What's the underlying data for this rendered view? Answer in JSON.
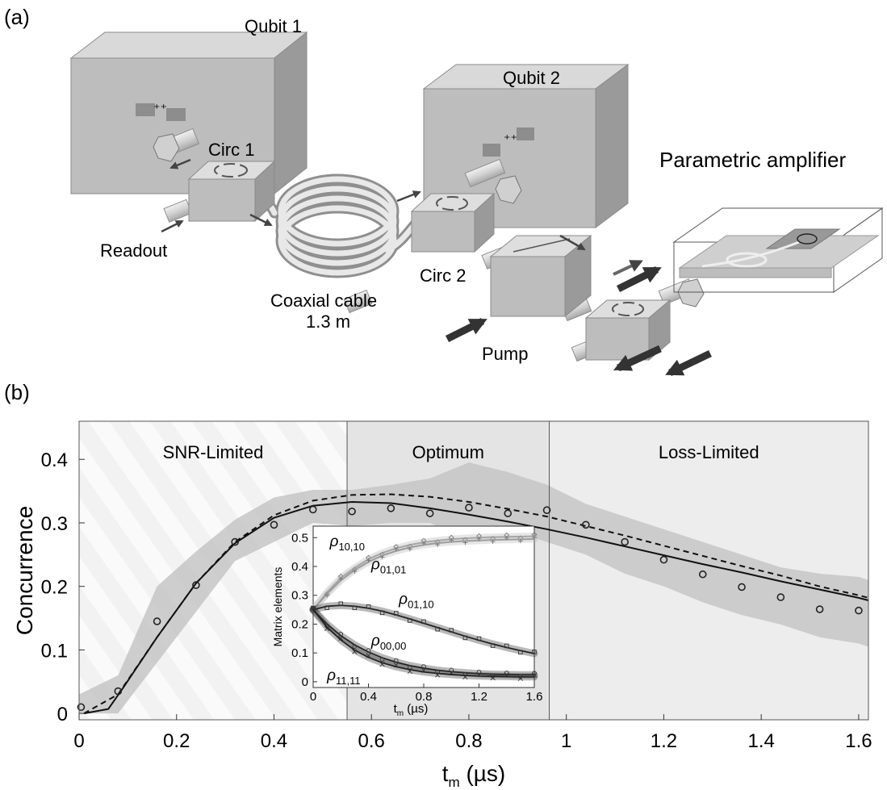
{
  "panel_a": {
    "label": "(a)",
    "labels": {
      "qubit1": "Qubit 1",
      "qubit2": "Qubit 2",
      "circ1": "Circ 1",
      "circ2": "Circ 2",
      "readout": "Readout",
      "cable_line1": "Coaxial cable",
      "cable_line2": "1.3 m",
      "pump": "Pump",
      "paramp": "Parametric amplifier"
    },
    "colors": {
      "box": "#bdbdbd",
      "arrow": "#444444"
    }
  },
  "panel_b": {
    "label": "(b)",
    "regions": [
      {
        "label": "SNR-Limited",
        "from": 0,
        "to": 0.55,
        "shade": "#f1f1f1"
      },
      {
        "label": "Optimum",
        "from": 0.55,
        "to": 0.965,
        "shade": "#e4e4e4"
      },
      {
        "label": "Loss-Limited",
        "from": 0.965,
        "to": 1.62,
        "shade": "#ededed"
      }
    ]
  },
  "chart_data": [
    {
      "type": "line",
      "xlabel": "t_m (µs)",
      "xlabel_main": "t",
      "xlabel_sub": "m",
      "xlabel_unit": " (µs)",
      "ylabel": "Concurrence",
      "xlim": [
        0,
        1.62
      ],
      "ylim": [
        -0.01,
        0.46
      ],
      "xticks": [
        0,
        0.2,
        0.4,
        0.6,
        0.8,
        1,
        1.2,
        1.4,
        1.6
      ],
      "xtick_labels": [
        "0",
        "0.2",
        "0.4",
        "0.6",
        "0.8",
        "1",
        "1.2",
        "1.4",
        "1.6"
      ],
      "yticks": [
        0,
        0.1,
        0.2,
        0.3,
        0.4
      ],
      "ytick_labels": [
        "0",
        "0.1",
        "0.2",
        "0.3",
        "0.4"
      ],
      "series": [
        {
          "style": "solid",
          "x": [
            0.01,
            0.06,
            0.09,
            0.16,
            0.24,
            0.32,
            0.4,
            0.48,
            0.56,
            0.64,
            0.72,
            0.8,
            0.88,
            0.96,
            1.04,
            1.12,
            1.2,
            1.28,
            1.36,
            1.44,
            1.52,
            1.6,
            1.62
          ],
          "y": [
            0.0,
            0.007,
            0.04,
            0.12,
            0.205,
            0.268,
            0.308,
            0.327,
            0.333,
            0.331,
            0.323,
            0.313,
            0.302,
            0.29,
            0.277,
            0.263,
            0.249,
            0.235,
            0.222,
            0.208,
            0.195,
            0.182,
            0.178
          ]
        },
        {
          "style": "dashed",
          "x": [
            0.01,
            0.08,
            0.16,
            0.24,
            0.32,
            0.4,
            0.48,
            0.56,
            0.64,
            0.72,
            0.8,
            0.88,
            0.96,
            1.04,
            1.12,
            1.2,
            1.28,
            1.36,
            1.44,
            1.52,
            1.6,
            1.62
          ],
          "y": [
            0.0,
            0.03,
            0.12,
            0.205,
            0.27,
            0.312,
            0.335,
            0.344,
            0.345,
            0.341,
            0.333,
            0.322,
            0.31,
            0.295,
            0.28,
            0.264,
            0.248,
            0.232,
            0.217,
            0.2,
            0.186,
            0.182
          ]
        },
        {
          "style": "markers",
          "x": [
            0.004,
            0.08,
            0.16,
            0.24,
            0.32,
            0.4,
            0.48,
            0.56,
            0.64,
            0.72,
            0.8,
            0.88,
            0.96,
            1.04,
            1.12,
            1.2,
            1.28,
            1.36,
            1.44,
            1.52,
            1.6
          ],
          "y": [
            0.01,
            0.035,
            0.145,
            0.202,
            0.27,
            0.297,
            0.321,
            0.318,
            0.323,
            0.315,
            0.324,
            0.315,
            0.32,
            0.297,
            0.27,
            0.242,
            0.219,
            0.199,
            0.183,
            0.164,
            0.162
          ]
        }
      ],
      "band_x": [
        0,
        0.08,
        0.16,
        0.24,
        0.32,
        0.4,
        0.48,
        0.56,
        0.64,
        0.72,
        0.8,
        0.88,
        0.96,
        1.04,
        1.12,
        1.2,
        1.28,
        1.36,
        1.44,
        1.52,
        1.6,
        1.62
      ],
      "band_upper": [
        0.03,
        0.06,
        0.2,
        0.255,
        0.305,
        0.34,
        0.352,
        0.352,
        0.36,
        0.37,
        0.395,
        0.38,
        0.36,
        0.33,
        0.31,
        0.29,
        0.27,
        0.25,
        0.23,
        0.22,
        0.215,
        0.21
      ],
      "band_lower": [
        0.0,
        0.0,
        0.08,
        0.16,
        0.24,
        0.27,
        0.3,
        0.295,
        0.3,
        0.3,
        0.27,
        0.29,
        0.27,
        0.25,
        0.22,
        0.2,
        0.175,
        0.155,
        0.14,
        0.12,
        0.11,
        0.105
      ],
      "dividers": [
        0.55,
        0.965
      ]
    },
    {
      "type": "line",
      "xlabel": "t_m (µs)",
      "xlabel_main": "t",
      "xlabel_sub": "m",
      "xlabel_unit": " (µs)",
      "ylabel": "Matrix elements",
      "xlim": [
        0,
        1.6
      ],
      "ylim": [
        -0.02,
        0.54
      ],
      "xticks": [
        0,
        0.4,
        0.8,
        1.2,
        1.6
      ],
      "xtick_labels": [
        "0",
        "0.4",
        "0.8",
        "1.2",
        "1.6"
      ],
      "yticks": [
        0,
        0.1,
        0.2,
        0.3,
        0.4,
        0.5
      ],
      "ytick_labels": [
        "0",
        "0.1",
        "0.2",
        "0.3",
        "0.4",
        "0.5"
      ],
      "series": [
        {
          "name": "ρ10,10",
          "label_main": "ρ",
          "label_sub": "10,10",
          "marker": "diamond",
          "shade": "#b8b8b8",
          "x": [
            0,
            0.1,
            0.2,
            0.3,
            0.4,
            0.5,
            0.6,
            0.7,
            0.8,
            0.9,
            1.0,
            1.1,
            1.2,
            1.3,
            1.4,
            1.5,
            1.6
          ],
          "y": [
            0.25,
            0.31,
            0.36,
            0.395,
            0.425,
            0.447,
            0.463,
            0.475,
            0.484,
            0.49,
            0.495,
            0.498,
            0.5,
            0.502,
            0.503,
            0.504,
            0.505
          ]
        },
        {
          "name": "ρ01,01",
          "label_main": "ρ",
          "label_sub": "01,01",
          "marker": "plus",
          "shade": "#b8b8b8",
          "x": [
            0,
            0.1,
            0.2,
            0.3,
            0.4,
            0.5,
            0.6,
            0.7,
            0.8,
            0.9,
            1.0,
            1.1,
            1.2,
            1.3,
            1.4,
            1.5,
            1.6
          ],
          "y": [
            0.25,
            0.305,
            0.352,
            0.388,
            0.416,
            0.438,
            0.454,
            0.466,
            0.475,
            0.481,
            0.485,
            0.488,
            0.49,
            0.492,
            0.493,
            0.494,
            0.495
          ]
        },
        {
          "name": "ρ01,10",
          "label_main": "ρ",
          "label_sub": "01,10",
          "marker": "square",
          "shade": "#333333",
          "x": [
            0,
            0.1,
            0.2,
            0.3,
            0.4,
            0.5,
            0.6,
            0.7,
            0.8,
            0.9,
            1.0,
            1.1,
            1.2,
            1.3,
            1.4,
            1.5,
            1.6
          ],
          "y": [
            0.25,
            0.262,
            0.265,
            0.262,
            0.255,
            0.245,
            0.232,
            0.218,
            0.203,
            0.188,
            0.173,
            0.158,
            0.144,
            0.131,
            0.119,
            0.108,
            0.098
          ]
        },
        {
          "name": "ρ00,00",
          "label_main": "ρ",
          "label_sub": "00,00",
          "marker": "circle",
          "shade": "#333333",
          "x": [
            0,
            0.1,
            0.2,
            0.3,
            0.4,
            0.5,
            0.6,
            0.7,
            0.8,
            0.9,
            1.0,
            1.1,
            1.2,
            1.3,
            1.4,
            1.5,
            1.6
          ],
          "y": [
            0.25,
            0.2,
            0.16,
            0.128,
            0.103,
            0.083,
            0.068,
            0.056,
            0.047,
            0.04,
            0.035,
            0.031,
            0.028,
            0.026,
            0.025,
            0.024,
            0.024
          ]
        },
        {
          "name": "ρ11,11",
          "label_main": "ρ",
          "label_sub": "11,11",
          "marker": "cross",
          "shade": "#333333",
          "x": [
            0,
            0.1,
            0.2,
            0.3,
            0.4,
            0.5,
            0.6,
            0.7,
            0.8,
            0.9,
            1.0,
            1.1,
            1.2,
            1.3,
            1.4,
            1.5,
            1.6
          ],
          "y": [
            0.25,
            0.19,
            0.145,
            0.11,
            0.085,
            0.066,
            0.052,
            0.042,
            0.034,
            0.029,
            0.025,
            0.022,
            0.02,
            0.019,
            0.018,
            0.017,
            0.017
          ]
        }
      ]
    }
  ]
}
